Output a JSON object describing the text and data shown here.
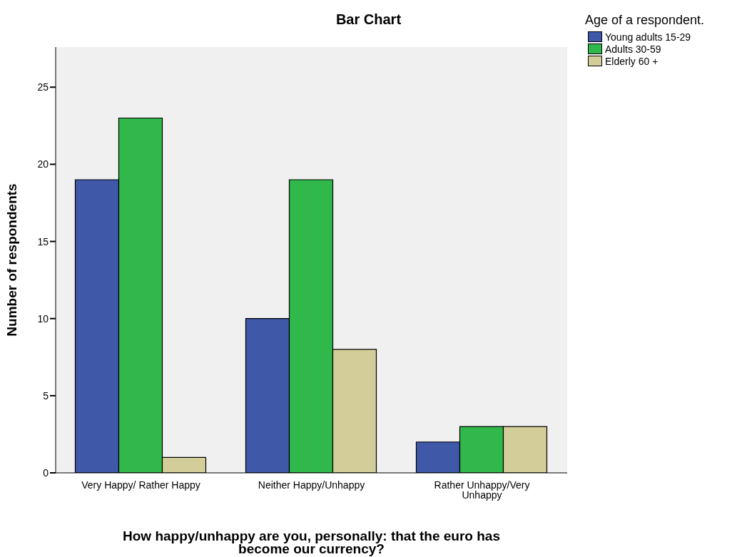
{
  "chart_data": {
    "type": "bar",
    "title": "Bar Chart",
    "xlabel": "How happy/unhappy are you, personally: that the euro has become our currency?",
    "ylabel": "Number of respondents",
    "legend_title": "Age of a respondent.",
    "categories": [
      "Very Happy/ Rather Happy",
      "Neither Happy/Unhappy",
      "Rather Unhappy/Very Unhappy"
    ],
    "series": [
      {
        "name": "Young adults 15-29",
        "color": "#3f58a8",
        "values": [
          19,
          10,
          2
        ]
      },
      {
        "name": "Adults 30-59",
        "color": "#30b84a",
        "values": [
          23,
          19,
          3
        ]
      },
      {
        "name": "Elderly 60 +",
        "color": "#d3ce99",
        "values": [
          1,
          8,
          3
        ]
      }
    ],
    "ylim": [
      0,
      27.6
    ],
    "yticks": [
      0,
      5,
      10,
      15,
      20,
      25
    ],
    "legend": "top right"
  }
}
